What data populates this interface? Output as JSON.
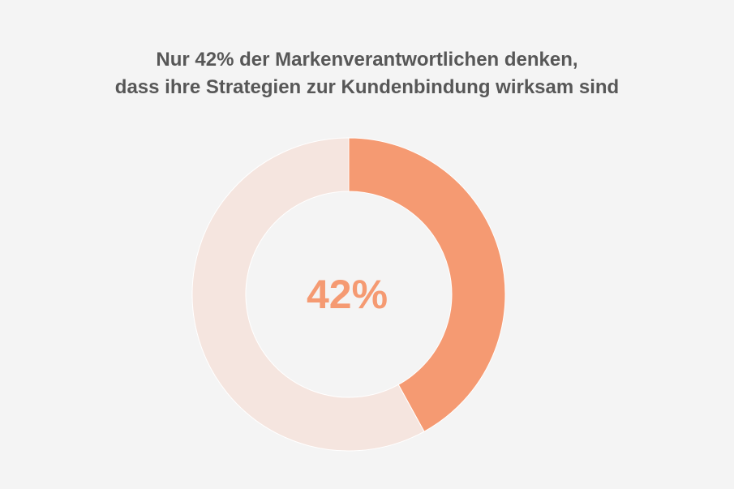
{
  "chart_data": {
    "type": "pie",
    "title_lines": [
      "Nur 42% der Markenverantwortlichen denken,",
      "dass ihre Strategien zur Kundenbindung wirksam sind"
    ],
    "slices": [
      {
        "value": 42,
        "color": "#f59a72"
      },
      {
        "value": 58,
        "color": "#f5e5df"
      }
    ],
    "center_label": "42%",
    "center_label_color": "#f59a72",
    "background": "#f4f4f4"
  }
}
